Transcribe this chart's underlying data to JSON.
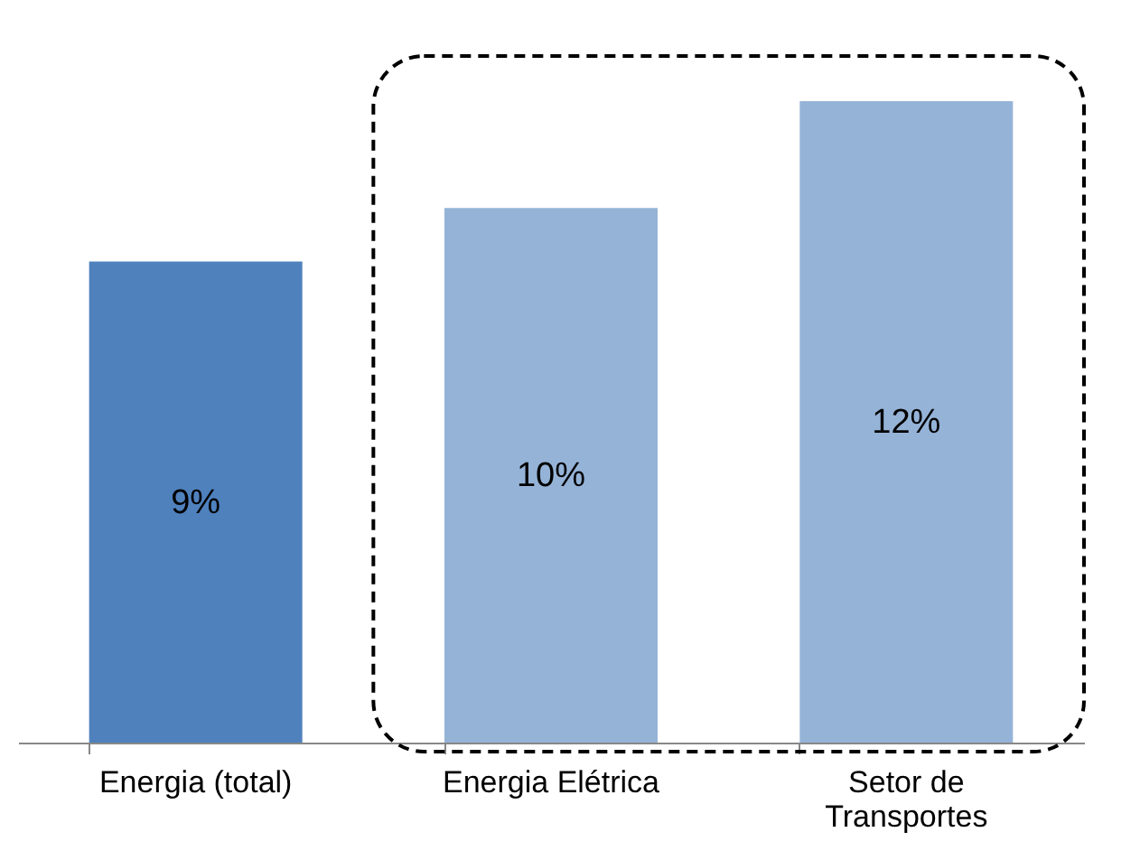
{
  "chart_data": {
    "type": "bar",
    "categories": [
      "Energia (total)",
      "Energia Elétrica",
      "Setor de Transportes"
    ],
    "values": [
      9,
      10,
      12
    ],
    "colors": [
      "#4f81bd",
      "#95b3d7",
      "#95b3d7"
    ],
    "value_labels": [
      "9%",
      "10%",
      "12%"
    ],
    "grid": false,
    "tick_labels": "x"
  }
}
